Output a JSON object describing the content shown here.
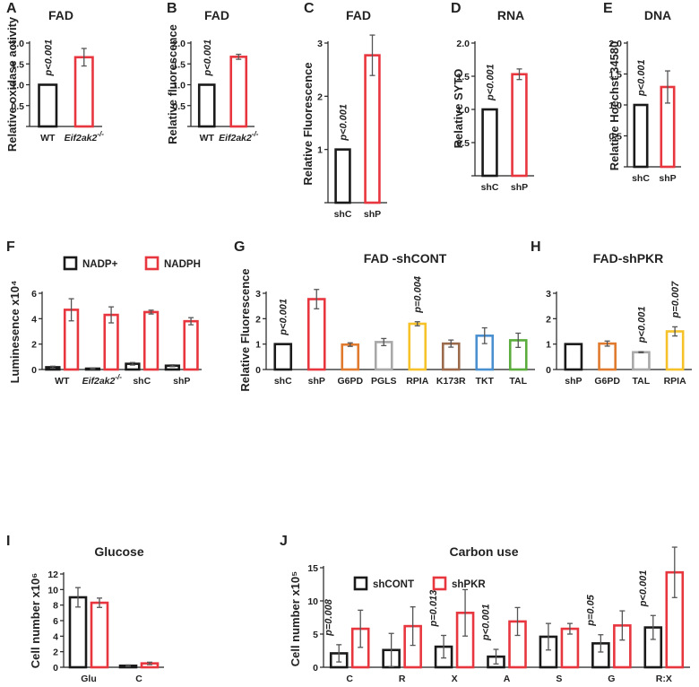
{
  "chart_data": [
    {
      "id": "A",
      "panel_label": "A",
      "title": "FAD",
      "type": "bar",
      "ylabel": "Relative oxidase activity",
      "ylim": [
        0,
        2.0
      ],
      "yticks": [
        0,
        0.5,
        1.0,
        1.5,
        2.0
      ],
      "ytick_labels": [
        "",
        "0.5",
        "1.0",
        "1.5",
        "2.0"
      ],
      "categories": [
        "WT",
        "Eif2ak2-/-"
      ],
      "category_labels": [
        "WT",
        "Eif2ak2"
      ],
      "category_superscripts": [
        "",
        "-/-"
      ],
      "values": [
        1.0,
        1.66
      ],
      "errors": [
        0,
        0.21
      ],
      "colors": [
        "#1a1a1a",
        "#e8363f"
      ],
      "annotation": {
        "text": "p<0.001",
        "category_index": 0
      }
    },
    {
      "id": "B",
      "panel_label": "B",
      "title": "FAD",
      "type": "bar",
      "ylabel": "Relative fluorescence",
      "ylim": [
        0,
        2.0
      ],
      "yticks": [
        0,
        0.5,
        1.0,
        1.5,
        2.0
      ],
      "ytick_labels": [
        "",
        "0.5",
        "1.0",
        "1.5",
        "2.0"
      ],
      "categories": [
        "WT",
        "Eif2ak2-/-"
      ],
      "category_labels": [
        "WT",
        "Eif2ak2"
      ],
      "category_superscripts": [
        "",
        "-/-"
      ],
      "values": [
        1.0,
        1.67
      ],
      "errors": [
        0,
        0.06
      ],
      "colors": [
        "#1a1a1a",
        "#e8363f"
      ],
      "annotation": {
        "text": "p<0.001",
        "category_index": 0
      }
    },
    {
      "id": "C",
      "panel_label": "C",
      "title": "FAD",
      "type": "bar",
      "ylabel": "Relative Fluorescence",
      "ylim": [
        0,
        3
      ],
      "yticks": [
        0,
        1,
        2,
        3
      ],
      "ytick_labels": [
        "",
        "1",
        "2",
        "3"
      ],
      "categories": [
        "shC",
        "shP"
      ],
      "values": [
        1.0,
        2.77
      ],
      "errors": [
        0,
        0.38
      ],
      "colors": [
        "#1a1a1a",
        "#e8363f"
      ],
      "annotation": {
        "text": "p<0.001",
        "category_index": 0
      }
    },
    {
      "id": "D",
      "panel_label": "D",
      "title": "RNA",
      "type": "bar",
      "ylabel": "Relative SYTO",
      "ylim": [
        0,
        2.0
      ],
      "yticks": [
        0,
        0.5,
        1.0,
        1.5,
        2.0
      ],
      "ytick_labels": [
        "",
        "0.5",
        "1.0",
        "1.5",
        "2.0"
      ],
      "categories": [
        "shC",
        "shP"
      ],
      "values": [
        1.0,
        1.53
      ],
      "errors": [
        0,
        0.08
      ],
      "colors": [
        "#1a1a1a",
        "#e8363f"
      ],
      "annotation": {
        "text": "p<0.001",
        "category_index": 0
      }
    },
    {
      "id": "E",
      "panel_label": "E",
      "title": "DNA",
      "type": "bar",
      "ylabel": "Relative Hoechst 34580",
      "ylim": [
        0,
        2.0
      ],
      "yticks": [
        0,
        0.5,
        1.0,
        1.5,
        2.0
      ],
      "ytick_labels": [
        "",
        "0.5",
        "1.0",
        "1.5",
        "2.0"
      ],
      "categories": [
        "shC",
        "shP"
      ],
      "values": [
        1.0,
        1.29
      ],
      "errors": [
        0,
        0.26
      ],
      "colors": [
        "#1a1a1a",
        "#e8363f"
      ],
      "annotation": {
        "text": "p<0.001",
        "category_index": 0
      }
    },
    {
      "id": "F",
      "panel_label": "F",
      "title": "",
      "type": "bar",
      "ylabel": "Luminesence x10⁴",
      "ylim": [
        0,
        6
      ],
      "yticks": [
        0,
        2,
        4,
        6
      ],
      "ytick_labels": [
        "0",
        "2",
        "4",
        "6"
      ],
      "categories": [
        "WT",
        "Eif2ak2-/-",
        "shC",
        "shP"
      ],
      "category_labels": [
        "WT",
        "Eif2ak2",
        "shC",
        "shP"
      ],
      "category_superscripts": [
        "",
        "-/-",
        "",
        ""
      ],
      "legend": [
        "NADP+",
        "NADPH"
      ],
      "series": [
        {
          "name": "NADP+",
          "color": "#1a1a1a",
          "values": [
            0.18,
            0.07,
            0.45,
            0.3
          ],
          "errors": [
            0.08,
            0.05,
            0.1,
            0.07
          ]
        },
        {
          "name": "NADPH",
          "color": "#e8363f",
          "values": [
            4.7,
            4.3,
            4.52,
            3.8
          ],
          "errors": [
            0.87,
            0.63,
            0.15,
            0.28
          ]
        }
      ]
    },
    {
      "id": "G",
      "panel_label": "G",
      "title": "FAD -shCONT",
      "type": "bar",
      "ylabel": "Relative Fluorescence",
      "ylim": [
        0,
        3
      ],
      "yticks": [
        0,
        1,
        2,
        3
      ],
      "ytick_labels": [
        "0",
        "1",
        "2",
        "3"
      ],
      "categories": [
        "shC",
        "shP",
        "G6PD",
        "PGLS",
        "RPIA",
        "K173R",
        "TKT",
        "TAL"
      ],
      "values": [
        1.0,
        2.77,
        0.98,
        1.08,
        1.8,
        1.02,
        1.33,
        1.15
      ],
      "errors": [
        0,
        0.38,
        0.07,
        0.14,
        0.08,
        0.14,
        0.31,
        0.28
      ],
      "colors": [
        "#1a1a1a",
        "#e8363f",
        "#e07a2e",
        "#a8a8a8",
        "#f5c22a",
        "#9a6a4a",
        "#4a90d0",
        "#5aac3c"
      ],
      "annotations": [
        {
          "text": "p<0.001",
          "category_index": 0
        },
        {
          "text": "p=0.004",
          "category_index": 4
        }
      ]
    },
    {
      "id": "H",
      "panel_label": "H",
      "title": "FAD-shPKR",
      "type": "bar",
      "ylabel": "",
      "ylim": [
        0,
        3
      ],
      "yticks": [
        0,
        1,
        2,
        3
      ],
      "ytick_labels": [
        "0",
        "1",
        "2",
        "3"
      ],
      "categories": [
        "shP",
        "G6PD",
        "TAL",
        "RPIA"
      ],
      "values": [
        1.0,
        1.02,
        0.68,
        1.5
      ],
      "errors": [
        0,
        0.1,
        0.02,
        0.18
      ],
      "colors": [
        "#1a1a1a",
        "#e07a2e",
        "#a8a8a8",
        "#f5c22a"
      ],
      "annotations": [
        {
          "text": "p<0.001",
          "category_index": 2
        },
        {
          "text": "p=0.007",
          "category_index": 3
        }
      ]
    },
    {
      "id": "I",
      "panel_label": "I",
      "title": "Glucose",
      "type": "bar",
      "ylabel": "Cell number x10⁶",
      "ylim": [
        0,
        12
      ],
      "yticks": [
        0,
        2,
        4,
        6,
        8,
        10,
        12
      ],
      "ytick_labels": [
        "0",
        "2",
        "4",
        "6",
        "8",
        "10",
        "12"
      ],
      "categories": [
        "Glu",
        "C"
      ],
      "series": [
        {
          "name": "shCONT",
          "color": "#1a1a1a",
          "values": [
            9.0,
            0.2
          ],
          "errors": [
            1.25,
            0.1
          ]
        },
        {
          "name": "shPKR",
          "color": "#e8363f",
          "values": [
            8.3,
            0.5
          ],
          "errors": [
            0.6,
            0.15
          ]
        }
      ]
    },
    {
      "id": "J",
      "panel_label": "J",
      "title": "Carbon use",
      "type": "bar",
      "ylabel": "Cell number x10⁵",
      "ylim": [
        0,
        15
      ],
      "yticks": [
        0,
        5,
        10,
        15
      ],
      "ytick_labels": [
        "0",
        "5",
        "10",
        "15"
      ],
      "categories": [
        "C",
        "R",
        "X",
        "A",
        "S",
        "G",
        "R:X"
      ],
      "legend": [
        "shCONT",
        "shPKR"
      ],
      "series": [
        {
          "name": "shCONT",
          "color": "#1a1a1a",
          "values": [
            2.1,
            2.6,
            3.1,
            1.6,
            4.6,
            3.6,
            6.0
          ],
          "errors": [
            1.3,
            2.5,
            1.7,
            1.1,
            2.0,
            1.3,
            1.8
          ]
        },
        {
          "name": "shPKR",
          "color": "#e8363f",
          "values": [
            5.8,
            6.2,
            8.2,
            6.9,
            5.8,
            6.3,
            14.3
          ],
          "errors": [
            2.8,
            2.9,
            3.5,
            2.1,
            0.8,
            2.2,
            3.8
          ]
        }
      ],
      "annotations": [
        {
          "text": "p=0.008",
          "category_index": 0
        },
        {
          "text": "p=0.013",
          "category_index": 2
        },
        {
          "text": "p<0.001",
          "category_index": 3
        },
        {
          "text": "p=0.05",
          "category_index": 5
        },
        {
          "text": "p<0.001",
          "category_index": 6
        }
      ]
    }
  ]
}
